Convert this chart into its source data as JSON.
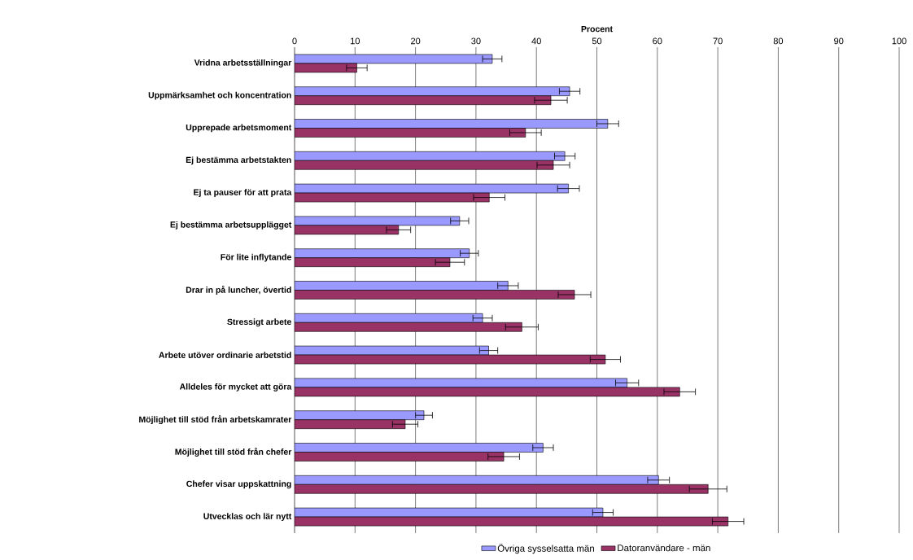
{
  "chart_data": {
    "type": "bar",
    "orientation": "horizontal",
    "xlabel": "Procent",
    "categories": [
      "Vridna arbetsställningar",
      "Uppmärksamhet och koncentration",
      "Upprepade arbetsmoment",
      "Ej bestämma arbetstakten",
      "Ej ta pauser för att prata",
      "Ej bestämma arbetsupplägget",
      "För lite inflytande",
      "Drar in på luncher, övertid",
      "Stressigt arbete",
      "Arbete utöver ordinarie arbetstid",
      "Alldeles för mycket att göra",
      "Möjlighet till stöd från arbetskamrater",
      "Möjlighet till stöd från chefer",
      "Chefer visar uppskattning",
      "Utvecklas och lär nytt"
    ],
    "series": [
      {
        "name": "Övriga sysselsatta män",
        "color": "#9999ff",
        "values": [
          32.7,
          45.5,
          51.8,
          44.7,
          45.3,
          27.3,
          28.9,
          35.3,
          31.1,
          32.1,
          55.0,
          21.4,
          41.1,
          60.2,
          51.0
        ],
        "errors": [
          1.6,
          1.7,
          1.8,
          1.7,
          1.8,
          1.5,
          1.5,
          1.7,
          1.6,
          1.5,
          1.9,
          1.4,
          1.7,
          1.8,
          1.7
        ]
      },
      {
        "name": "Datoranvändare - män",
        "color": "#993366",
        "values": [
          10.3,
          42.4,
          38.2,
          42.8,
          32.2,
          17.2,
          25.7,
          46.3,
          37.6,
          51.4,
          63.7,
          18.3,
          34.6,
          68.4,
          71.7
        ],
        "errors": [
          1.7,
          2.7,
          2.6,
          2.7,
          2.6,
          2.0,
          2.4,
          2.7,
          2.7,
          2.5,
          2.6,
          2.1,
          2.6,
          3.1,
          2.6
        ]
      }
    ],
    "xlim": [
      0,
      100
    ],
    "xticks": [
      0,
      10,
      20,
      30,
      40,
      50,
      60,
      70,
      80,
      90,
      100
    ],
    "grid": "x",
    "legend": "bottom"
  }
}
